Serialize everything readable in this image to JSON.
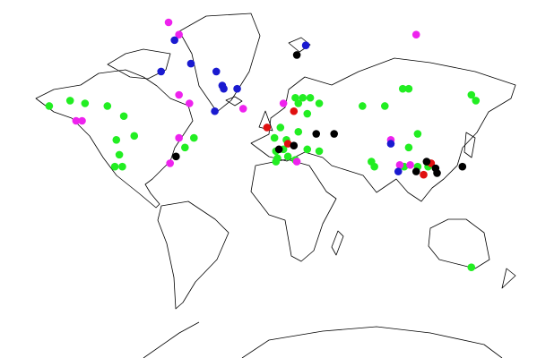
{
  "chart_data": {
    "type": "scatter",
    "projection": "mercator",
    "xlim": [
      -180,
      180
    ],
    "ylim": [
      -71,
      80
    ],
    "series": [
      {
        "color": "#22ee22",
        "x": [
          -147,
          -133,
          -123,
          -108,
          -97,
          -102,
          -90,
          -50,
          -100,
          -103,
          -98,
          -56,
          18,
          23,
          28,
          34,
          20,
          26,
          20,
          4,
          8,
          12,
          10,
          5,
          6,
          13,
          18,
          26,
          34,
          63,
          78,
          90,
          94,
          136,
          139,
          94,
          100,
          69,
          71,
          91,
          100,
          107,
          136,
          5
        ],
        "y": [
          56,
          58,
          57,
          56,
          52,
          41,
          43,
          42,
          33,
          26,
          26,
          37,
          59,
          59,
          59,
          57,
          57,
          53,
          45,
          42,
          47,
          41,
          36,
          35,
          31,
          32,
          30,
          36,
          35,
          56,
          56,
          62,
          62,
          60,
          58,
          37,
          44,
          29,
          26,
          26,
          26,
          26,
          -38,
          29
        ]
      },
      {
        "color": "#ee22ee",
        "x": [
          -67,
          -60,
          99,
          -60,
          -53,
          -17,
          10,
          -129,
          -125,
          -60,
          -66,
          82,
          88,
          95,
          19
        ],
        "y": [
          77,
          75,
          75,
          60,
          57,
          55,
          57,
          50,
          50,
          42,
          28,
          41,
          27,
          27,
          29
        ]
      },
      {
        "color": "#1a1ad0",
        "x": [
          -63,
          -72,
          -52,
          -35,
          -31,
          -30,
          -21,
          -36,
          25,
          82,
          87
        ],
        "y": [
          74,
          67,
          69,
          67,
          63,
          62,
          62,
          54,
          73,
          39,
          23
        ]
      },
      {
        "color": "#e01010",
        "x": [
          17,
          -1,
          13,
          109,
          104
        ],
        "y": [
          54,
          47,
          39,
          28,
          21
        ]
      },
      {
        "color": "#000000",
        "x": [
          19,
          32,
          44,
          17,
          7,
          -62,
          106,
          112,
          113,
          99,
          130
        ],
        "y": [
          71,
          44,
          44,
          38,
          36,
          32,
          29,
          25,
          22,
          23,
          26
        ]
      }
    ]
  }
}
